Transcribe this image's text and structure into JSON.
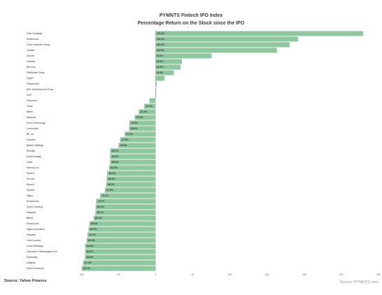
{
  "colors": {
    "bar": "#8fc79e",
    "bar_stroke": "#6fae82",
    "zero_line": "#b5b5b5"
  },
  "source_text": "Source: Yahoo Finance",
  "credit_text": "Source: PYMNTS.com",
  "chart_data": {
    "type": "bar",
    "orientation": "horizontal",
    "title": "PYMNTS Fintech IPO Index",
    "subtitle": "Percentage Return on the Stock since the IPO",
    "xlim": [
      -100,
      300
    ],
    "xticks": [
      "-100",
      "-50",
      "0",
      "50",
      "100",
      "150",
      "200",
      "250",
      "300"
    ],
    "grid": false,
    "categories": [
      "Futu Holdings",
      "Robinhood",
      "Circle Internet Group",
      "Upstart",
      "Sezzle",
      "Nubank",
      "Bill.com",
      "Pathfinder Bank",
      "OppFi",
      "Paymentus",
      "BAY Development Corp.",
      "SoFi",
      "Payoneer",
      "Toast",
      "Affirm",
      "Marqeta",
      "Root Technology",
      "Lemonade",
      "BF Inc",
      "Oportun",
      "Bakkt Holdings",
      "Remitly",
      "AvidXchange",
      "Dave",
      "MoneyLion",
      "Flywire",
      "dLocal",
      "Alkami",
      "Flywire",
      "Hippo",
      "Robinhood",
      "Open Lending",
      "Marqeta",
      "Blend",
      "MoneyLion",
      "Hippo Insurance",
      "Paysafe",
      "OneConnect",
      "Lufax Holdings",
      "Opendoor Technologies Inc.",
      "Expensify",
      "Katapult",
      "EverCommerce"
    ],
    "value_labels": [
      "279.3%",
      "191.8%",
      "180.4%",
      "163.3%",
      "75.3%",
      "35.4%",
      "33.5%",
      "24.5%",
      "",
      "",
      "",
      "",
      "",
      "-15.1%",
      "-22.4%",
      "-27.9%",
      "-34.9%",
      "-35.5%",
      "-41.3%",
      "-47.4%",
      "-49.6%",
      "-60.7%",
      "-60.9%",
      "-60.9%",
      "-62.3%",
      "-64.9%",
      "-65.6%",
      "-66.3%",
      "-67.9%",
      "-74.3%",
      "-79.7%",
      "-80.3%",
      "-80.7%",
      "-83.1%",
      "-88.8%",
      "-89.9%",
      "-91.4%",
      "-92.5%",
      "-94.6%",
      "-94.7%",
      "-94.8%",
      "-97.2%",
      "-99.1%"
    ],
    "values": [
      279.3,
      191.8,
      180.4,
      163.3,
      75.3,
      35.4,
      33.5,
      24.5,
      12.0,
      1.5,
      1.0,
      0.8,
      -8.0,
      -15.1,
      -22.4,
      -27.9,
      -34.9,
      -35.5,
      -41.3,
      -47.4,
      -49.6,
      -60.7,
      -60.9,
      -60.9,
      -62.3,
      -64.9,
      -65.6,
      -66.3,
      -67.9,
      -74.3,
      -79.7,
      -80.3,
      -80.7,
      -83.1,
      -88.8,
      -89.9,
      -91.4,
      -92.5,
      -94.6,
      -94.7,
      -94.8,
      -97.2,
      -99.1
    ]
  }
}
